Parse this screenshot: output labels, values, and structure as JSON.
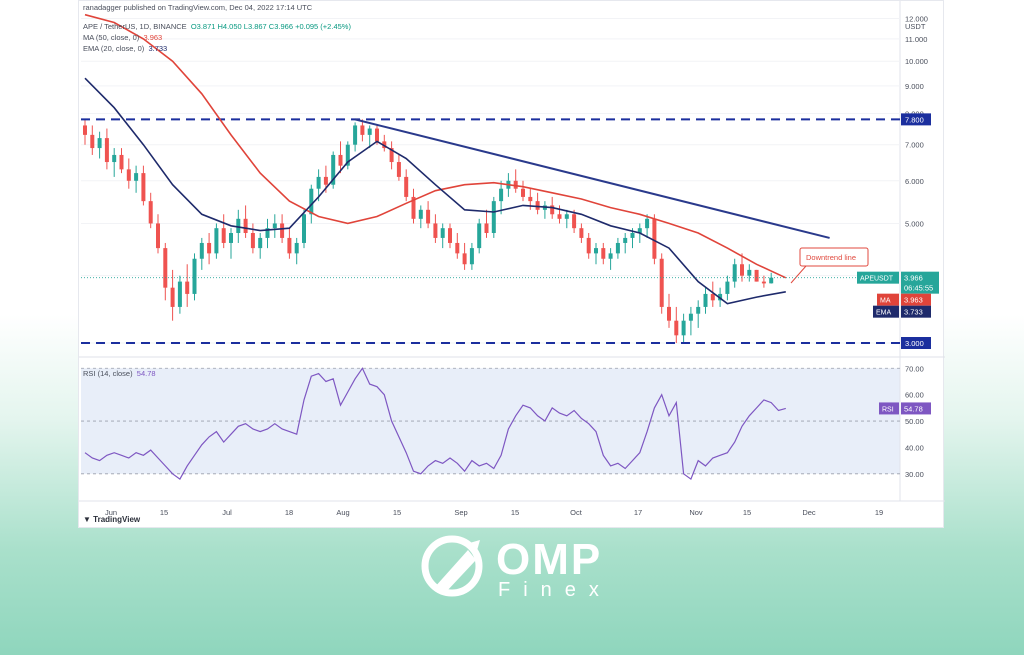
{
  "header": {
    "publisher": "ranadagger published on TradingView.com, Dec 04, 2022 17:14 UTC",
    "symbol": "APE / TetherUS, 1D, BINANCE",
    "ohlc": "O3.871 H4.050 L3.867 C3.966 +0.095 (+2.45%)",
    "ma_label": "MA (50, close, 0)",
    "ma_value": "3.963",
    "ema_label": "EMA (20, close, 0)",
    "ema_value": "3.733"
  },
  "rsi_legend": {
    "label": "RSI (14, close)",
    "value": "54.78"
  },
  "brand": {
    "tradingview": "TradingView"
  },
  "logo": {
    "name": "OMP",
    "sub": "Finex"
  },
  "colors": {
    "up": "#26a69a",
    "down": "#ef5350",
    "ma": "#e0443a",
    "ema": "#1e2a6b",
    "level": "#1b2f9e",
    "trend": "#2a3a8c",
    "rsi": "#7e57c2"
  },
  "chart_data": [
    {
      "type": "candlestick",
      "currency": "USDT",
      "ylim": [
        3.0,
        12.5
      ],
      "y_scale": "log",
      "price_ticks": [
        "12.000",
        "11.000",
        "10.000",
        "9.000",
        "8.000",
        "7.000",
        "6.000",
        "5.000",
        "4.000",
        "3.000"
      ],
      "x_ticks": [
        "Jun",
        "15",
        "Jul",
        "18",
        "Aug",
        "15",
        "Sep",
        "15",
        "Oct",
        "17",
        "Nov",
        "15",
        "Dec",
        "19"
      ],
      "candles": [
        [
          7.6,
          7.8,
          7.0,
          7.3
        ],
        [
          7.3,
          7.6,
          6.7,
          6.9
        ],
        [
          6.9,
          7.4,
          6.6,
          7.2
        ],
        [
          7.2,
          7.5,
          6.3,
          6.5
        ],
        [
          6.5,
          6.9,
          6.1,
          6.7
        ],
        [
          6.7,
          6.9,
          6.2,
          6.3
        ],
        [
          6.3,
          6.6,
          5.8,
          6.0
        ],
        [
          6.0,
          6.4,
          5.7,
          6.2
        ],
        [
          6.2,
          6.4,
          5.4,
          5.5
        ],
        [
          5.5,
          5.7,
          4.9,
          5.0
        ],
        [
          5.0,
          5.2,
          4.4,
          4.5
        ],
        [
          4.5,
          4.6,
          3.6,
          3.8
        ],
        [
          3.8,
          4.1,
          3.3,
          3.5
        ],
        [
          3.5,
          4.0,
          3.4,
          3.9
        ],
        [
          3.9,
          4.2,
          3.5,
          3.7
        ],
        [
          3.7,
          4.4,
          3.6,
          4.3
        ],
        [
          4.3,
          4.7,
          4.1,
          4.6
        ],
        [
          4.6,
          4.8,
          4.2,
          4.4
        ],
        [
          4.4,
          5.0,
          4.3,
          4.9
        ],
        [
          4.9,
          5.2,
          4.5,
          4.6
        ],
        [
          4.6,
          4.9,
          4.3,
          4.8
        ],
        [
          4.8,
          5.3,
          4.6,
          5.1
        ],
        [
          5.1,
          5.4,
          4.7,
          4.8
        ],
        [
          4.8,
          5.0,
          4.4,
          4.5
        ],
        [
          4.5,
          4.8,
          4.3,
          4.7
        ],
        [
          4.7,
          5.1,
          4.5,
          4.9
        ],
        [
          4.9,
          5.2,
          4.7,
          5.0
        ],
        [
          5.0,
          5.2,
          4.6,
          4.7
        ],
        [
          4.7,
          4.9,
          4.3,
          4.4
        ],
        [
          4.4,
          4.7,
          4.2,
          4.6
        ],
        [
          4.6,
          5.3,
          4.5,
          5.2
        ],
        [
          5.2,
          5.9,
          5.0,
          5.8
        ],
        [
          5.8,
          6.3,
          5.5,
          6.1
        ],
        [
          6.1,
          6.4,
          5.7,
          5.9
        ],
        [
          5.9,
          6.8,
          5.8,
          6.7
        ],
        [
          6.7,
          7.1,
          6.2,
          6.4
        ],
        [
          6.4,
          7.1,
          6.3,
          7.0
        ],
        [
          7.0,
          7.7,
          6.8,
          7.6
        ],
        [
          7.6,
          7.8,
          7.1,
          7.3
        ],
        [
          7.3,
          7.6,
          6.9,
          7.5
        ],
        [
          7.5,
          7.6,
          7.0,
          7.1
        ],
        [
          7.1,
          7.3,
          6.8,
          6.9
        ],
        [
          6.9,
          7.1,
          6.3,
          6.5
        ],
        [
          6.5,
          6.7,
          6.0,
          6.1
        ],
        [
          6.1,
          6.3,
          5.5,
          5.6
        ],
        [
          5.6,
          5.8,
          5.0,
          5.1
        ],
        [
          5.1,
          5.4,
          4.9,
          5.3
        ],
        [
          5.3,
          5.5,
          4.9,
          5.0
        ],
        [
          5.0,
          5.2,
          4.6,
          4.7
        ],
        [
          4.7,
          5.0,
          4.5,
          4.9
        ],
        [
          4.9,
          5.0,
          4.5,
          4.6
        ],
        [
          4.6,
          4.8,
          4.3,
          4.4
        ],
        [
          4.4,
          4.6,
          4.1,
          4.2
        ],
        [
          4.2,
          4.6,
          4.1,
          4.5
        ],
        [
          4.5,
          5.1,
          4.4,
          5.0
        ],
        [
          5.0,
          5.3,
          4.7,
          4.8
        ],
        [
          4.8,
          5.6,
          4.7,
          5.5
        ],
        [
          5.5,
          6.0,
          5.2,
          5.8
        ],
        [
          5.8,
          6.2,
          5.6,
          6.0
        ],
        [
          6.0,
          6.3,
          5.7,
          5.8
        ],
        [
          5.8,
          6.0,
          5.5,
          5.6
        ],
        [
          5.6,
          5.8,
          5.3,
          5.5
        ],
        [
          5.5,
          5.7,
          5.2,
          5.3
        ],
        [
          5.3,
          5.5,
          5.1,
          5.4
        ],
        [
          5.4,
          5.6,
          5.1,
          5.2
        ],
        [
          5.2,
          5.4,
          5.0,
          5.1
        ],
        [
          5.1,
          5.3,
          4.9,
          5.2
        ],
        [
          5.2,
          5.3,
          4.8,
          4.9
        ],
        [
          4.9,
          5.0,
          4.6,
          4.7
        ],
        [
          4.7,
          4.8,
          4.3,
          4.4
        ],
        [
          4.4,
          4.6,
          4.2,
          4.5
        ],
        [
          4.5,
          4.6,
          4.2,
          4.3
        ],
        [
          4.3,
          4.5,
          4.1,
          4.4
        ],
        [
          4.4,
          4.7,
          4.3,
          4.6
        ],
        [
          4.6,
          4.8,
          4.4,
          4.7
        ],
        [
          4.7,
          4.9,
          4.5,
          4.8
        ],
        [
          4.8,
          5.0,
          4.6,
          4.9
        ],
        [
          4.9,
          5.2,
          4.7,
          5.1
        ],
        [
          5.1,
          5.2,
          4.2,
          4.3
        ],
        [
          4.3,
          4.4,
          3.4,
          3.5
        ],
        [
          3.5,
          3.7,
          3.2,
          3.3
        ],
        [
          3.3,
          3.5,
          3.0,
          3.1
        ],
        [
          3.1,
          3.4,
          3.0,
          3.3
        ],
        [
          3.3,
          3.5,
          3.1,
          3.4
        ],
        [
          3.4,
          3.6,
          3.2,
          3.5
        ],
        [
          3.5,
          3.8,
          3.4,
          3.7
        ],
        [
          3.7,
          3.9,
          3.5,
          3.6
        ],
        [
          3.6,
          3.8,
          3.5,
          3.7
        ],
        [
          3.7,
          4.0,
          3.6,
          3.9
        ],
        [
          3.9,
          4.3,
          3.8,
          4.2
        ],
        [
          4.2,
          4.4,
          3.9,
          4.0
        ],
        [
          4.0,
          4.2,
          3.9,
          4.1
        ],
        [
          4.1,
          4.1,
          3.9,
          3.9
        ],
        [
          3.9,
          4.0,
          3.8,
          3.87
        ],
        [
          3.871,
          4.05,
          3.867,
          3.966
        ]
      ],
      "ma50": [
        [
          0,
          12.2
        ],
        [
          4,
          11.8
        ],
        [
          8,
          11.0
        ],
        [
          12,
          10.0
        ],
        [
          16,
          8.7
        ],
        [
          20,
          7.3
        ],
        [
          24,
          6.2
        ],
        [
          28,
          5.5
        ],
        [
          32,
          5.15
        ],
        [
          36,
          5.0
        ],
        [
          40,
          5.15
        ],
        [
          44,
          5.45
        ],
        [
          48,
          5.75
        ],
        [
          52,
          5.9
        ],
        [
          56,
          5.95
        ],
        [
          60,
          5.85
        ],
        [
          64,
          5.7
        ],
        [
          68,
          5.55
        ],
        [
          72,
          5.35
        ],
        [
          76,
          5.2
        ],
        [
          80,
          5.0
        ],
        [
          84,
          4.8
        ],
        [
          88,
          4.5
        ],
        [
          92,
          4.2
        ],
        [
          96,
          3.963
        ]
      ],
      "ema20": [
        [
          0,
          9.3
        ],
        [
          4,
          8.2
        ],
        [
          8,
          7.0
        ],
        [
          12,
          5.9
        ],
        [
          16,
          5.2
        ],
        [
          20,
          4.95
        ],
        [
          24,
          4.85
        ],
        [
          28,
          4.9
        ],
        [
          32,
          5.6
        ],
        [
          36,
          6.5
        ],
        [
          40,
          7.1
        ],
        [
          44,
          6.6
        ],
        [
          48,
          5.9
        ],
        [
          52,
          5.3
        ],
        [
          56,
          5.25
        ],
        [
          60,
          5.4
        ],
        [
          64,
          5.35
        ],
        [
          68,
          5.2
        ],
        [
          72,
          4.95
        ],
        [
          76,
          4.8
        ],
        [
          80,
          4.5
        ],
        [
          84,
          3.9
        ],
        [
          88,
          3.55
        ],
        [
          92,
          3.65
        ],
        [
          96,
          3.733
        ]
      ],
      "levels": [
        {
          "name": "resistance",
          "value": 7.8,
          "label": "7.800"
        },
        {
          "name": "support",
          "value": 3.0,
          "label": "3.000"
        }
      ],
      "trendline": {
        "from": [
          37,
          7.8
        ],
        "to": [
          102,
          4.7
        ]
      },
      "annotation": "Downtrend line",
      "price_tags": [
        {
          "name": "APEUSDT",
          "value": 3.966,
          "label": "APEUSDT",
          "text": "3.966",
          "sub": "06:45:55"
        },
        {
          "name": "MA",
          "value": 3.963,
          "label": "MA",
          "text": "3.963"
        },
        {
          "name": "EMA",
          "value": 3.733,
          "label": "EMA",
          "text": "3.733"
        }
      ]
    },
    {
      "type": "line",
      "name": "RSI (14, close)",
      "ylim": [
        25,
        72
      ],
      "y_ticks": [
        "70.00",
        "60.00",
        "50.00",
        "40.00",
        "30.00"
      ],
      "band": [
        30,
        70
      ],
      "midline": 50,
      "value_tag": {
        "label": "RSI",
        "text": "54.78",
        "value": 54.78
      },
      "values": [
        38,
        36,
        35,
        37,
        38,
        37,
        36,
        38,
        37,
        39,
        36,
        33,
        30,
        28,
        33,
        37,
        41,
        44,
        46,
        42,
        45,
        48,
        49,
        47,
        46,
        47,
        49,
        47,
        46,
        45,
        58,
        67,
        68,
        65,
        66,
        56,
        61,
        66,
        70,
        64,
        63,
        60,
        50,
        44,
        38,
        31,
        30,
        33,
        35,
        34,
        36,
        34,
        31,
        35,
        33,
        34,
        32,
        37,
        47,
        52,
        56,
        55,
        52,
        50,
        55,
        53,
        52,
        54,
        51,
        49,
        46,
        37,
        33,
        34,
        32,
        35,
        38,
        46,
        55,
        60,
        52,
        57,
        30,
        28,
        35,
        33,
        36,
        37,
        38,
        42,
        48,
        52,
        55,
        58,
        57,
        54,
        54.78
      ]
    }
  ]
}
